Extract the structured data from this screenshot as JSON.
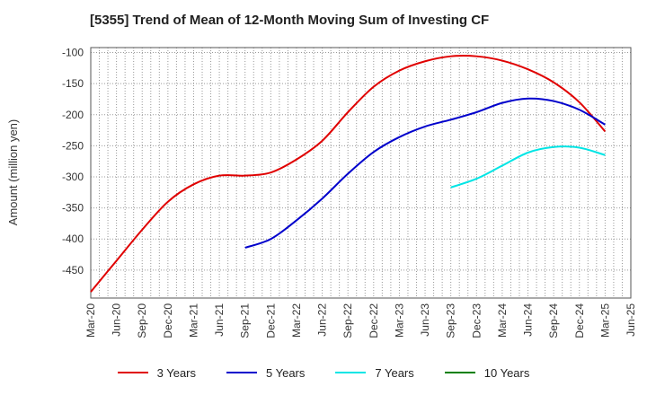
{
  "chart_data": {
    "type": "line",
    "title": "[5355]  Trend of Mean of 12-Month Moving Sum of Investing CF",
    "xlabel": "",
    "ylabel": "Amount (million yen)",
    "ylim": [
      -495,
      -92
    ],
    "yticks": [
      -100,
      -150,
      -200,
      -250,
      -300,
      -350,
      -400,
      -450
    ],
    "xticks": [
      "Mar-20",
      "Jun-20",
      "Sep-20",
      "Dec-20",
      "Mar-21",
      "Jun-21",
      "Sep-21",
      "Dec-21",
      "Mar-22",
      "Jun-22",
      "Sep-22",
      "Dec-22",
      "Mar-23",
      "Jun-23",
      "Sep-23",
      "Dec-23",
      "Mar-24",
      "Jun-24",
      "Sep-24",
      "Dec-24",
      "Mar-25",
      "Jun-25"
    ],
    "grid": true,
    "legend_position": "bottom",
    "series": [
      {
        "name": "3 Years",
        "color": "#e00000",
        "x": [
          "Mar-20",
          "Jun-20",
          "Sep-20",
          "Dec-20",
          "Mar-21",
          "Jun-21",
          "Sep-21",
          "Dec-21",
          "Mar-22",
          "Jun-22",
          "Sep-22",
          "Dec-22",
          "Mar-23",
          "Jun-23",
          "Sep-23",
          "Dec-23",
          "Mar-24",
          "Jun-24",
          "Sep-24",
          "Dec-24",
          "Mar-25"
        ],
        "values": [
          -485,
          -435,
          -385,
          -340,
          -312,
          -298,
          -298,
          -293,
          -272,
          -242,
          -196,
          -155,
          -129,
          -114,
          -106,
          -106,
          -113,
          -127,
          -148,
          -180,
          -227
        ]
      },
      {
        "name": "5 Years",
        "color": "#0000cc",
        "x": [
          "Sep-21",
          "Dec-21",
          "Mar-22",
          "Jun-22",
          "Sep-22",
          "Dec-22",
          "Mar-23",
          "Jun-23",
          "Sep-23",
          "Dec-23",
          "Mar-24",
          "Jun-24",
          "Sep-24",
          "Dec-24",
          "Mar-25"
        ],
        "values": [
          -414,
          -400,
          -370,
          -335,
          -295,
          -260,
          -236,
          -219,
          -208,
          -196,
          -181,
          -174,
          -178,
          -192,
          -216
        ]
      },
      {
        "name": "7 Years",
        "color": "#00e5e5",
        "x": [
          "Sep-23",
          "Dec-23",
          "Mar-24",
          "Jun-24",
          "Sep-24",
          "Dec-24",
          "Mar-25"
        ],
        "values": [
          -317,
          -303,
          -282,
          -261,
          -252,
          -253,
          -265
        ]
      },
      {
        "name": "10 Years",
        "color": "#008000",
        "x": [],
        "values": []
      }
    ]
  }
}
